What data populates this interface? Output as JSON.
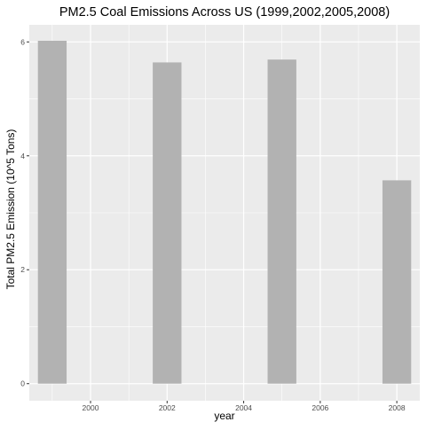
{
  "chart_data": {
    "type": "bar",
    "title": "PM2.5 Coal Emissions Across US (1999,2002,2005,2008)",
    "xlabel": "year",
    "ylabel": "Total PM2.5 Emission (10^5 Tons)",
    "x": [
      1999,
      2002,
      2005,
      2008
    ],
    "values": [
      6.02,
      5.64,
      5.69,
      3.57
    ],
    "xlim": [
      1998.4,
      2008.6
    ],
    "ylim": [
      -0.3,
      6.3
    ],
    "xticks": [
      2000,
      2002,
      2004,
      2006,
      2008
    ],
    "yticks": [
      0,
      2,
      4,
      6
    ],
    "grid": true,
    "colors": {
      "bar": "#b2b2b2",
      "panel": "#ebebeb",
      "grid": "#ffffff",
      "text": "#000000",
      "tick_text": "#4d4d4d",
      "tick": "#333333"
    }
  }
}
